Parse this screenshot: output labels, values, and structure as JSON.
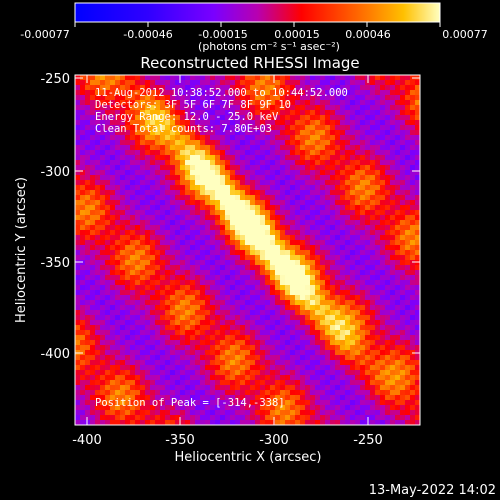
{
  "window": {
    "background": "#000000"
  },
  "colorbar": {
    "tick_labels": [
      "-0.00077",
      "-0.00046",
      "-0.00015",
      "0.00015",
      "0.00046",
      "0.00077"
    ],
    "units": "(photons cm⁻² s⁻¹ asec⁻²)",
    "colormap": [
      "#0000ff",
      "#3000ff",
      "#7a00ff",
      "#b800b0",
      "#ff0000",
      "#ff6a00",
      "#ffc000",
      "#ffffc0"
    ]
  },
  "image": {
    "title": "Reconstructed RHESSI Image",
    "info_lines": [
      "11-Aug-2012 10:38:52.000 to 10:44:52.000",
      "Detectors: 3F 5F 6F 7F 8F 9F 10",
      "Energy Range: 12.0 - 25.0 keV",
      "Clean    Total counts: 7.80E+03"
    ],
    "peak_label": "Position of Peak = [-314,-338]"
  },
  "axes": {
    "xlabel": "Heliocentric X (arcsec)",
    "ylabel": "Heliocentric Y (arcsec)",
    "x_ticks": [
      "-400",
      "-350",
      "-300",
      "-250"
    ],
    "y_ticks": [
      "-250",
      "-300",
      "-350",
      "-400"
    ]
  },
  "footer": {
    "timestamp": "13-May-2022 14:02"
  }
}
